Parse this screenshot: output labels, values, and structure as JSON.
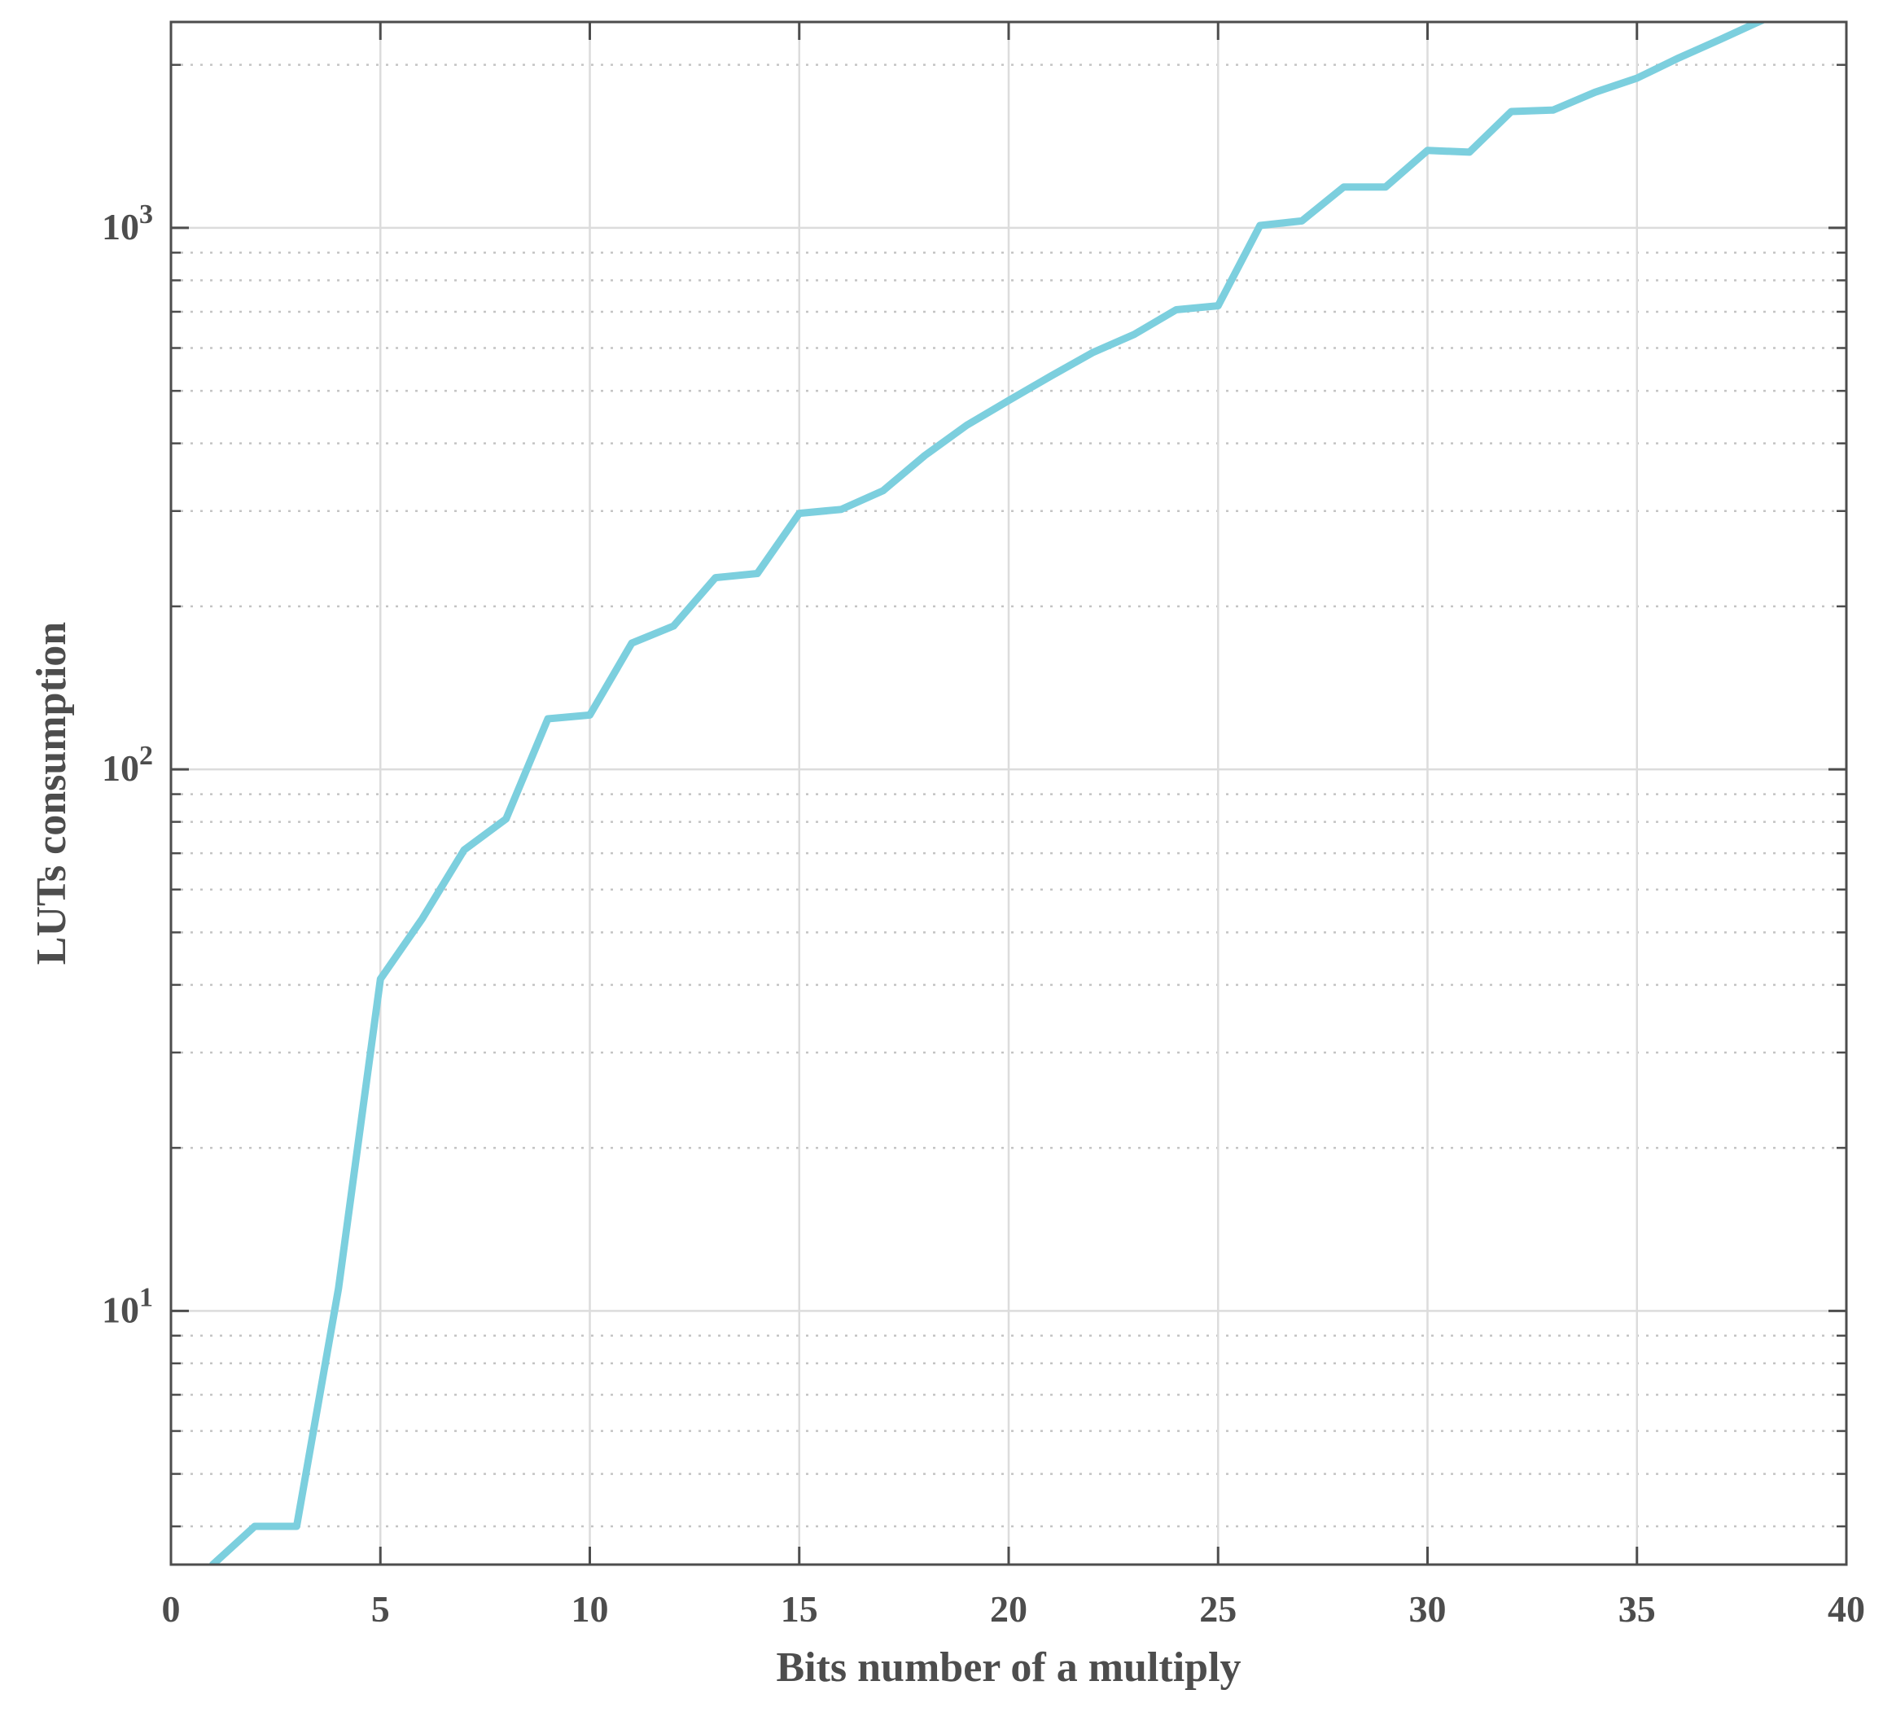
{
  "chart_data": {
    "type": "line",
    "title": "",
    "xlabel": "Bits number of  a multiply",
    "ylabel": "LUTs consumption",
    "xlim": [
      0,
      40
    ],
    "ylim": [
      3.4,
      2400
    ],
    "yscale": "log",
    "grid": true,
    "minor_grid": true,
    "legend": "none",
    "x_ticks": [
      0,
      5,
      10,
      15,
      20,
      25,
      30,
      35,
      40
    ],
    "x_tick_labels": [
      "0",
      "5",
      "10",
      "15",
      "20",
      "25",
      "30",
      "35",
      "40"
    ],
    "y_ticks": [
      {
        "value": 10,
        "base": "10",
        "exponent": "1"
      },
      {
        "value": 100,
        "base": "10",
        "exponent": "2"
      },
      {
        "value": 1000,
        "base": "10",
        "exponent": "3"
      }
    ],
    "colors": {
      "line": "#7ccfde",
      "axes": "#4d4d4d",
      "major_grid": "#dcdcdc",
      "minor_grid": "#c4c4c4"
    },
    "series": [
      {
        "x": [
          1,
          2,
          3,
          4,
          5,
          6,
          7,
          8,
          9,
          10,
          11,
          12,
          13,
          14,
          15,
          16,
          17,
          18,
          19,
          20,
          21,
          22,
          23,
          24,
          25,
          26,
          27,
          28,
          29,
          30,
          31,
          32,
          33,
          34,
          35,
          36,
          37,
          38,
          39
        ],
        "values": [
          3.4,
          4,
          4,
          11,
          41,
          53,
          71,
          81,
          124,
          126,
          171,
          184,
          226,
          230,
          297,
          302,
          327,
          380,
          432,
          480,
          532,
          588,
          636,
          706,
          718,
          1010,
          1030,
          1190,
          1190,
          1390,
          1380,
          1640,
          1650,
          1780,
          1890,
          2060,
          2230,
          2420,
          2600
        ]
      }
    ]
  }
}
